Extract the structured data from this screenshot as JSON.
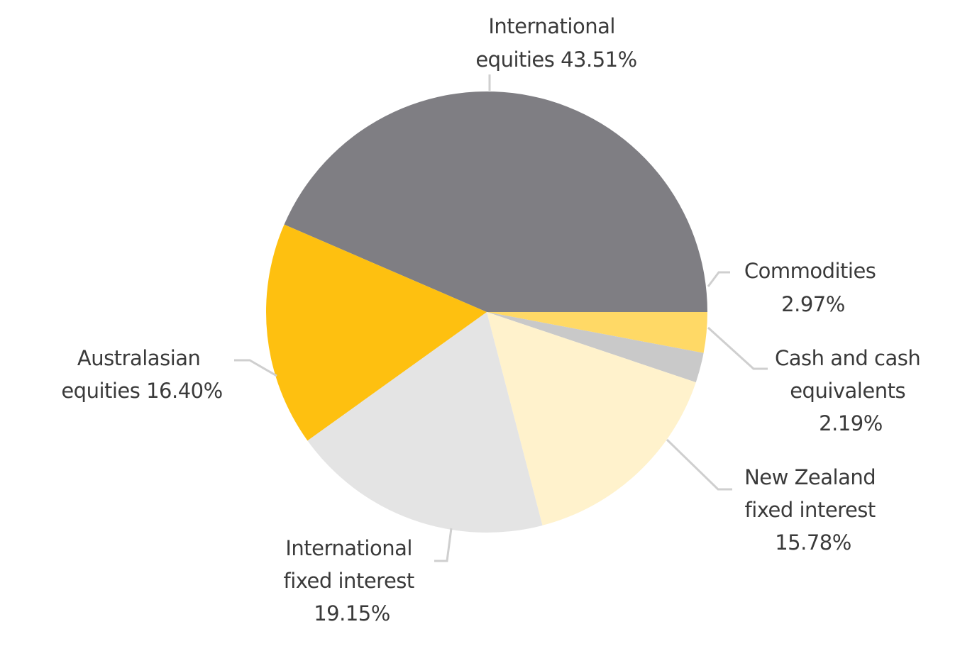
{
  "chart_data": {
    "type": "pie",
    "slices": [
      {
        "label": "International equities",
        "value": 43.51,
        "value_label": "43.51%",
        "color": "#7f7e83",
        "label_lines": [
          "International",
          "equities 43.51%"
        ]
      },
      {
        "label": "Commodities",
        "value": 2.97,
        "value_label": "2.97%",
        "color": "#ffd966",
        "label_lines": [
          "Commodities",
          "2.97%"
        ]
      },
      {
        "label": "Cash and cash equivalents",
        "value": 2.19,
        "value_label": "2.19%",
        "color": "#c9c9c9",
        "label_lines": [
          "Cash and cash",
          "equivalents",
          "2.19%"
        ]
      },
      {
        "label": "New Zealand fixed interest",
        "value": 15.78,
        "value_label": "15.78%",
        "color": "#fff2cc",
        "label_lines": [
          "New Zealand",
          "fixed interest",
          "15.78%"
        ]
      },
      {
        "label": "International fixed interest",
        "value": 19.15,
        "value_label": "19.15%",
        "color": "#e4e4e4",
        "label_lines": [
          "International",
          "fixed interest",
          "19.15%"
        ]
      },
      {
        "label": "Australasian equities",
        "value": 16.4,
        "value_label": "16.40%",
        "color": "#fec010",
        "label_lines": [
          "Australasian",
          "equities 16.40%"
        ]
      }
    ],
    "start_angle_deg": 0,
    "direction": "clockwise",
    "legend": "none",
    "data_labels": "outside-with-leader-lines"
  }
}
